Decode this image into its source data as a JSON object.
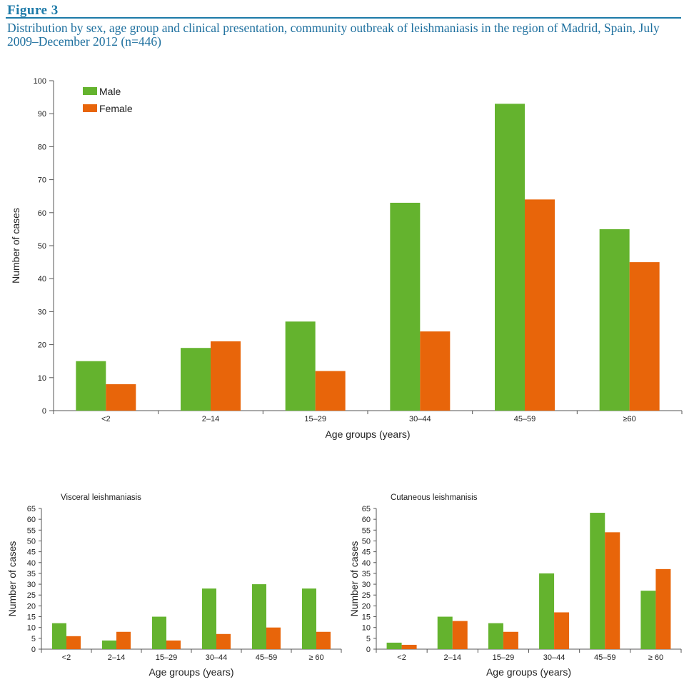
{
  "figure": {
    "label": "Figure 3",
    "caption": "Distribution by sex, age group and clinical presentation, community outbreak of leishmaniasis in the region of Madrid, Spain, July 2009–December 2012 (n=446)"
  },
  "colors": {
    "male": "#64b32e",
    "female": "#e8650a",
    "axis": "#555555"
  },
  "chart_data": [
    {
      "type": "bar",
      "title": "",
      "categories": [
        "<2",
        "2–14",
        "15–29",
        "30–44",
        "45–59",
        "≥60"
      ],
      "series": [
        {
          "name": "Male",
          "values": [
            15,
            19,
            27,
            63,
            93,
            55
          ]
        },
        {
          "name": "Female",
          "values": [
            8,
            21,
            12,
            24,
            64,
            45
          ]
        }
      ],
      "xlabel": "Age groups (years)",
      "ylabel": "Number of cases",
      "ylim": [
        0,
        100
      ],
      "yticks": [
        0,
        10,
        20,
        30,
        40,
        50,
        60,
        70,
        80,
        90,
        100
      ],
      "legend": "top-left",
      "grid": false
    },
    {
      "type": "bar",
      "title": "Visceral leishmaniasis",
      "categories": [
        "<2",
        "2–14",
        "15–29",
        "30–44",
        "45–59",
        "≥ 60"
      ],
      "series": [
        {
          "name": "Male",
          "values": [
            12,
            4,
            15,
            28,
            30,
            28
          ]
        },
        {
          "name": "Female",
          "values": [
            6,
            8,
            4,
            7,
            10,
            8
          ]
        }
      ],
      "xlabel": "Age groups (years)",
      "ylabel": "Number of cases",
      "ylim": [
        0,
        65
      ],
      "yticks": [
        0,
        5,
        10,
        15,
        20,
        25,
        30,
        35,
        40,
        45,
        50,
        55,
        60,
        65
      ],
      "grid": false
    },
    {
      "type": "bar",
      "title": "Cutaneous leishmanisis",
      "categories": [
        "<2",
        "2–14",
        "15–29",
        "30–44",
        "45–59",
        "≥ 60"
      ],
      "series": [
        {
          "name": "Male",
          "values": [
            3,
            15,
            12,
            35,
            63,
            27
          ]
        },
        {
          "name": "Female",
          "values": [
            2,
            13,
            8,
            17,
            54,
            37
          ]
        }
      ],
      "xlabel": "Age groups (years)",
      "ylabel": "Number of cases",
      "ylim": [
        0,
        65
      ],
      "yticks": [
        0,
        5,
        10,
        15,
        20,
        25,
        30,
        35,
        40,
        45,
        50,
        55,
        60,
        65
      ],
      "grid": false
    }
  ]
}
